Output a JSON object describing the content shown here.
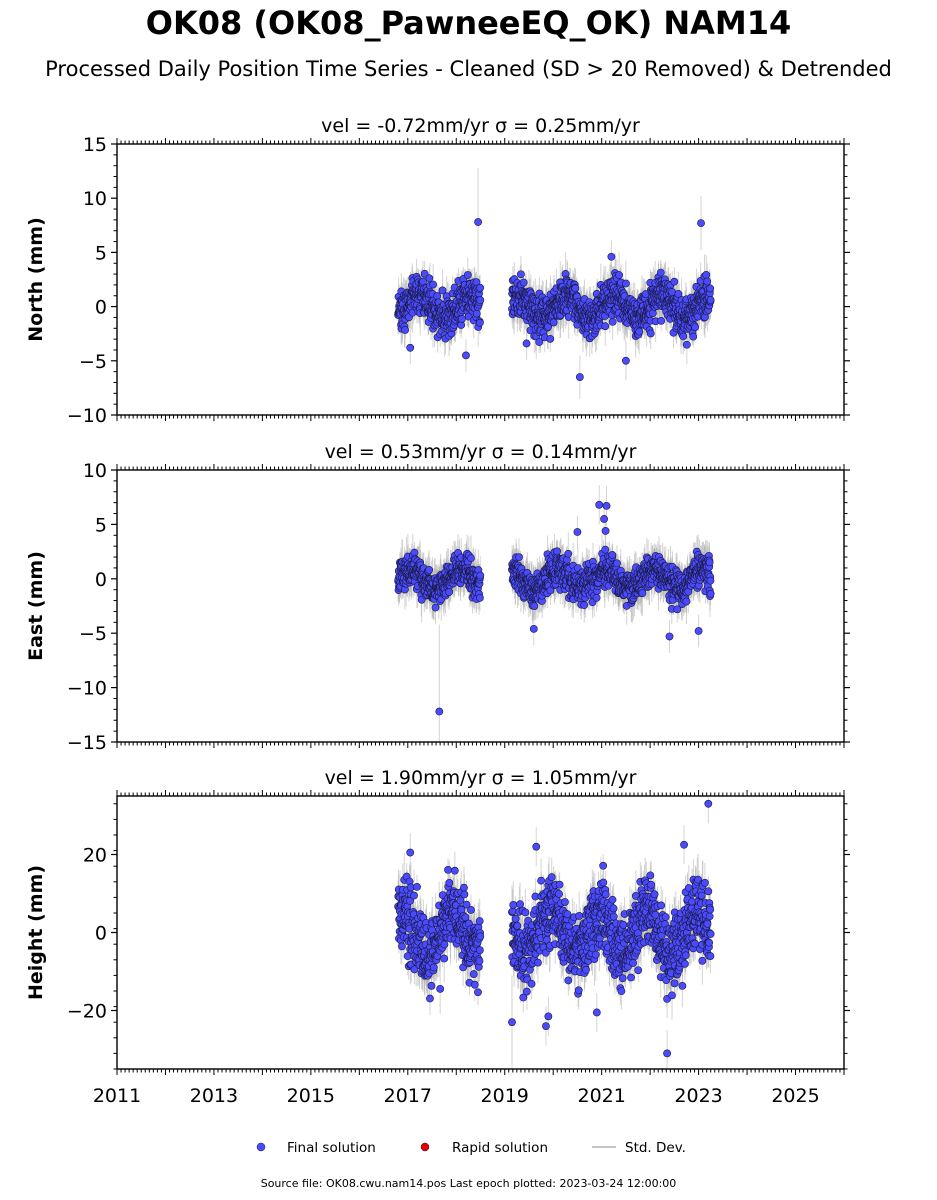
{
  "header": {
    "title": "OK08 (OK08_PawneeEQ_OK) NAM14",
    "subtitle": "Processed Daily Position Time Series - Cleaned (SD > 20 Removed) & Detrended"
  },
  "footer": {
    "source_note": "Source file: OK08.cwu.nam14.pos  Last epoch plotted: 2023-03-24 12:00:00"
  },
  "colors": {
    "final_solution": "#4a4aff",
    "rapid_solution": "#e00000",
    "std_dev": "#b0b0b0"
  },
  "chart_data": [
    {
      "type": "scatter",
      "panel": "north",
      "title": "vel = -0.72mm/yr   σ = 0.25mm/yr",
      "ylabel": "North (mm)",
      "xlim": [
        2011,
        2026
      ],
      "ylim": [
        -10,
        15
      ],
      "yticks": [
        -10,
        -5,
        0,
        5,
        10,
        15
      ],
      "xticks": [
        2011,
        2013,
        2015,
        2017,
        2019,
        2021,
        2023,
        2025
      ],
      "segments": [
        [
          2016.8,
          2018.5
        ],
        [
          2019.15,
          2023.25
        ]
      ],
      "typical_range": [
        -3,
        3
      ],
      "typical_sd": 1.5,
      "outliers": [
        {
          "x": 2018.45,
          "y": 7.8,
          "sd": 5
        },
        {
          "x": 2023.05,
          "y": 7.7,
          "sd": 2.5
        },
        {
          "x": 2020.55,
          "y": -6.5,
          "sd": 2
        },
        {
          "x": 2021.5,
          "y": -5.0,
          "sd": 1.8
        },
        {
          "x": 2018.2,
          "y": -4.5,
          "sd": 1.5
        },
        {
          "x": 2017.05,
          "y": -3.8,
          "sd": 1.5
        },
        {
          "x": 2021.2,
          "y": 4.6,
          "sd": 1.5
        },
        {
          "x": 2019.45,
          "y": -3.4,
          "sd": 1.5
        }
      ]
    },
    {
      "type": "scatter",
      "panel": "east",
      "title": "vel = 0.53mm/yr   σ = 0.14mm/yr",
      "ylabel": "East (mm)",
      "xlim": [
        2011,
        2026
      ],
      "ylim": [
        -15,
        10
      ],
      "yticks": [
        -15,
        -10,
        -5,
        0,
        5,
        10
      ],
      "xticks": [
        2011,
        2013,
        2015,
        2017,
        2019,
        2021,
        2023,
        2025
      ],
      "segments": [
        [
          2016.8,
          2018.5
        ],
        [
          2019.15,
          2023.25
        ]
      ],
      "typical_range": [
        -2.5,
        2.5
      ],
      "typical_sd": 1.5,
      "outliers": [
        {
          "x": 2017.65,
          "y": -12.2,
          "sd": 8
        },
        {
          "x": 2020.95,
          "y": 6.8,
          "sd": 1.8
        },
        {
          "x": 2021.1,
          "y": 6.7,
          "sd": 1.8
        },
        {
          "x": 2021.05,
          "y": 5.5,
          "sd": 1.5
        },
        {
          "x": 2021.08,
          "y": 4.4,
          "sd": 1.5
        },
        {
          "x": 2020.5,
          "y": 4.3,
          "sd": 1.5
        },
        {
          "x": 2022.4,
          "y": -5.3,
          "sd": 1.5
        },
        {
          "x": 2023.0,
          "y": -4.8,
          "sd": 1.5
        },
        {
          "x": 2019.6,
          "y": -4.6,
          "sd": 1.5
        }
      ]
    },
    {
      "type": "scatter",
      "panel": "height",
      "title": "vel = 1.90mm/yr   σ = 1.05mm/yr",
      "ylabel": "Height (mm)",
      "xlim": [
        2011,
        2026
      ],
      "ylim": [
        -35,
        35
      ],
      "yticks": [
        -20,
        0,
        20
      ],
      "xticks": [
        2011,
        2013,
        2015,
        2017,
        2019,
        2021,
        2023,
        2025
      ],
      "segments": [
        [
          2016.8,
          2018.5
        ],
        [
          2019.15,
          2023.25
        ]
      ],
      "typical_range": [
        -15,
        15
      ],
      "typical_sd": 5,
      "outliers": [
        {
          "x": 2023.2,
          "y": 33,
          "sd": 5
        },
        {
          "x": 2022.35,
          "y": -31,
          "sd": 6
        },
        {
          "x": 2019.15,
          "y": -23,
          "sd": 12
        },
        {
          "x": 2019.85,
          "y": -24,
          "sd": 5
        },
        {
          "x": 2019.9,
          "y": -21.5,
          "sd": 5
        },
        {
          "x": 2020.9,
          "y": -20.5,
          "sd": 5
        },
        {
          "x": 2019.65,
          "y": 22,
          "sd": 5
        },
        {
          "x": 2022.7,
          "y": 22.5,
          "sd": 5
        },
        {
          "x": 2017.05,
          "y": 20.5,
          "sd": 5
        }
      ]
    }
  ],
  "legend": {
    "placement": "bottom-center",
    "items": [
      {
        "label": "Final solution",
        "kind": "dot",
        "color": "#4a4aff"
      },
      {
        "label": "Rapid solution",
        "kind": "dot",
        "color": "#e00000"
      },
      {
        "label": "Std. Dev.",
        "kind": "line",
        "color": "#b0b0b0"
      }
    ]
  }
}
